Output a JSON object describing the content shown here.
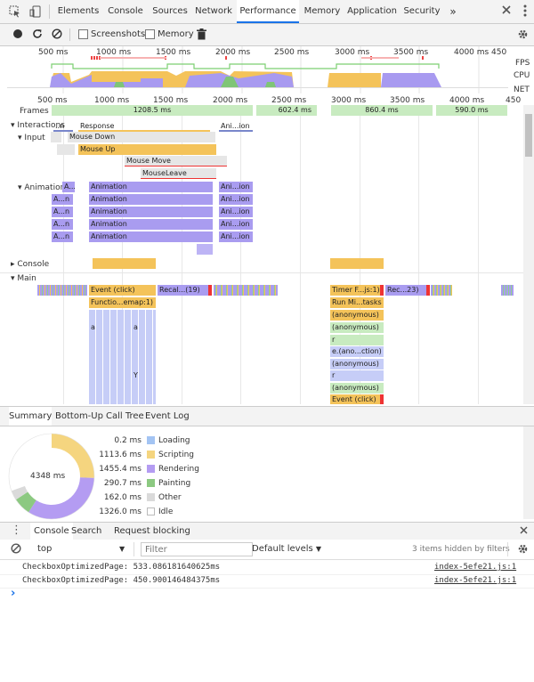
{
  "tabs": [
    "Elements",
    "Console",
    "Sources",
    "Network",
    "Performance",
    "Memory",
    "Application",
    "Security"
  ],
  "tabs_more": "»",
  "toolbar": {
    "screenshots": "Screenshots",
    "memory": "Memory"
  },
  "overview": {
    "ticks": [
      "500 ms",
      "1000 ms",
      "1500 ms",
      "2000 ms",
      "2500 ms",
      "3000 ms",
      "3500 ms",
      "4000 ms",
      "450"
    ],
    "lanes": [
      "FPS",
      "CPU",
      "NET"
    ]
  },
  "ruler": [
    "500 ms",
    "1000 ms",
    "1500 ms",
    "2000 ms",
    "2500 ms",
    "3000 ms",
    "3500 ms",
    "4000 ms",
    "450"
  ],
  "frames": {
    "label": "Frames",
    "values": [
      "1208.5 ms",
      "602.4 ms",
      "860.4 ms",
      "590.0 ms"
    ]
  },
  "tracks": {
    "interactions": "Interactions",
    "interactions_n": "..n",
    "response": "Response",
    "animation_short": "Ani...ion",
    "input": "Input",
    "mouse_down": "Mouse Down",
    "mouse_up": "Mouse Up",
    "mouse_move": "Mouse Move",
    "mouse_leave": "MouseLeave",
    "animation": "Animation",
    "a_n": "A...n",
    "console": "Console",
    "main": "Main",
    "event_click": "Event (click)",
    "recalc1": "Recal...(19)",
    "function_call": "Functio...emap:1)",
    "timer_fired": "Timer F...js:1)",
    "recalc2": "Rec...23)",
    "run_microtasks": "Run Mi...tasks",
    "anonymous": "(anonymous)",
    "a": "a",
    "r": "r",
    "y": "Y",
    "e_anon": "e.(ano...ction)",
    "event_click2": "Event (click)"
  },
  "subtabs": [
    "Summary",
    "Bottom-Up",
    "Call Tree",
    "Event Log"
  ],
  "summary": {
    "total": "4348 ms",
    "items": [
      {
        "value": "0.2 ms",
        "name": "Loading",
        "color": "#a3c4f3",
        "ms": 0.2
      },
      {
        "value": "1113.6 ms",
        "name": "Scripting",
        "color": "#f5d57f",
        "ms": 1113.6
      },
      {
        "value": "1455.4 ms",
        "name": "Rendering",
        "color": "#b49cf2",
        "ms": 1455.4
      },
      {
        "value": "290.7 ms",
        "name": "Painting",
        "color": "#8cc981",
        "ms": 290.7
      },
      {
        "value": "162.0 ms",
        "name": "Other",
        "color": "#dadada",
        "ms": 162.0
      },
      {
        "value": "1326.0 ms",
        "name": "Idle",
        "color": "#ffffff",
        "ms": 1326.0
      }
    ]
  },
  "drawer": {
    "tabs": [
      "Console",
      "Search",
      "Request blocking"
    ]
  },
  "console": {
    "context": "top",
    "filter_placeholder": "Filter",
    "levels": "Default levels",
    "hidden": "3 items hidden by filters",
    "lines": [
      {
        "text": "CheckboxOptimizedPage: 533.086181640625ms",
        "source": "index-5efe21.js:1"
      },
      {
        "text": "CheckboxOptimizedPage: 450.900146484375ms",
        "source": "index-5efe21.js:1"
      }
    ],
    "prompt": "›"
  }
}
